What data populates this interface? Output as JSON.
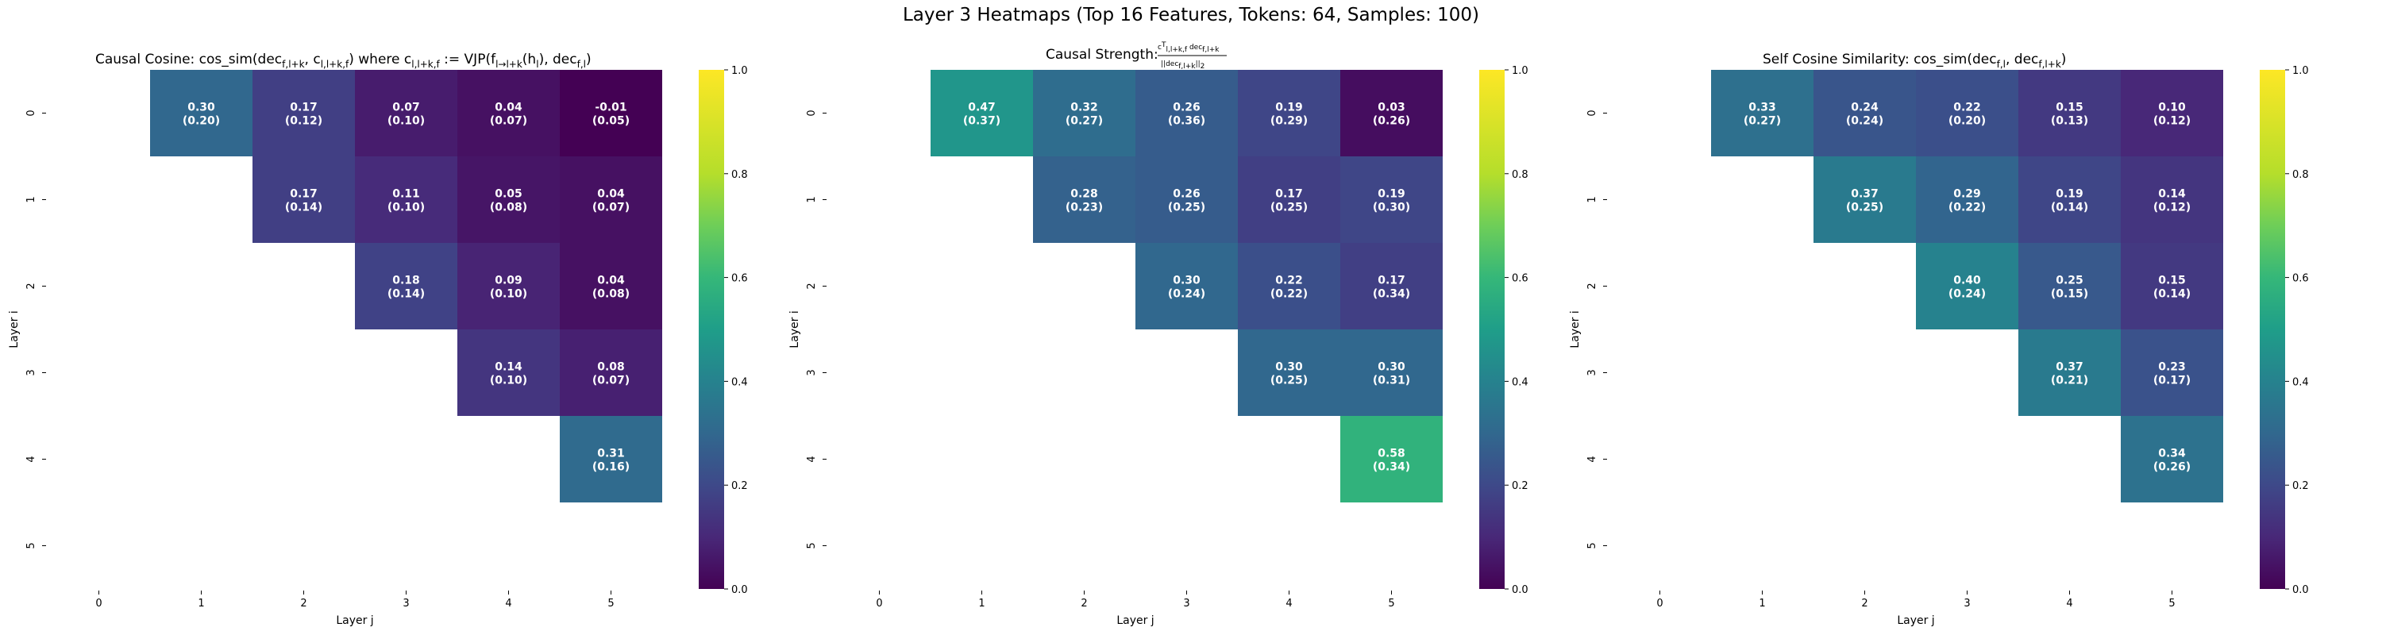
{
  "title": "Layer 3 Heatmaps (Top 16 Features, Tokens: 64, Samples: 100)",
  "chart_data": [
    {
      "type": "heatmap",
      "title": "Causal Cosine: cos_sim(dec_{f,l+k}, c_{l,l+k,f}) where c_{l,l+k,f} := VJP(f_{l→l+k}(h_l), dec_{f,l})",
      "xlabel": "Layer j",
      "ylabel": "Layer i",
      "x_ticks": [
        "0",
        "1",
        "2",
        "3",
        "4",
        "5"
      ],
      "y_ticks": [
        "0",
        "1",
        "2",
        "3",
        "4",
        "5"
      ],
      "colormap": "viridis",
      "vmin": 0.0,
      "vmax": 1.0,
      "colorbar_ticks": [
        "0.0",
        "0.2",
        "0.4",
        "0.6",
        "0.8",
        "1.0"
      ],
      "cells": [
        {
          "i": 0,
          "j": 1,
          "value": 0.3,
          "label": "0.30",
          "sublabel": "(0.20)"
        },
        {
          "i": 0,
          "j": 2,
          "value": 0.17,
          "label": "0.17",
          "sublabel": "(0.12)"
        },
        {
          "i": 0,
          "j": 3,
          "value": 0.07,
          "label": "0.07",
          "sublabel": "(0.10)"
        },
        {
          "i": 0,
          "j": 4,
          "value": 0.04,
          "label": "0.04",
          "sublabel": "(0.07)"
        },
        {
          "i": 0,
          "j": 5,
          "value": -0.01,
          "label": "-0.01",
          "sublabel": "(0.05)"
        },
        {
          "i": 1,
          "j": 2,
          "value": 0.17,
          "label": "0.17",
          "sublabel": "(0.14)"
        },
        {
          "i": 1,
          "j": 3,
          "value": 0.11,
          "label": "0.11",
          "sublabel": "(0.10)"
        },
        {
          "i": 1,
          "j": 4,
          "value": 0.05,
          "label": "0.05",
          "sublabel": "(0.08)"
        },
        {
          "i": 1,
          "j": 5,
          "value": 0.04,
          "label": "0.04",
          "sublabel": "(0.07)"
        },
        {
          "i": 2,
          "j": 3,
          "value": 0.18,
          "label": "0.18",
          "sublabel": "(0.14)"
        },
        {
          "i": 2,
          "j": 4,
          "value": 0.09,
          "label": "0.09",
          "sublabel": "(0.10)"
        },
        {
          "i": 2,
          "j": 5,
          "value": 0.04,
          "label": "0.04",
          "sublabel": "(0.08)"
        },
        {
          "i": 3,
          "j": 4,
          "value": 0.14,
          "label": "0.14",
          "sublabel": "(0.10)"
        },
        {
          "i": 3,
          "j": 5,
          "value": 0.08,
          "label": "0.08",
          "sublabel": "(0.07)"
        },
        {
          "i": 4,
          "j": 5,
          "value": 0.31,
          "label": "0.31",
          "sublabel": "(0.16)"
        }
      ]
    },
    {
      "type": "heatmap",
      "title": "Causal Strength: c^T_{l,l+k,f} dec_{f,l+k} / ||dec_{f,l+k}||_2",
      "xlabel": "Layer j",
      "ylabel": "Layer i",
      "x_ticks": [
        "0",
        "1",
        "2",
        "3",
        "4",
        "5"
      ],
      "y_ticks": [
        "0",
        "1",
        "2",
        "3",
        "4",
        "5"
      ],
      "colormap": "viridis",
      "vmin": 0.0,
      "vmax": 1.0,
      "colorbar_ticks": [
        "0.0",
        "0.2",
        "0.4",
        "0.6",
        "0.8",
        "1.0"
      ],
      "cells": [
        {
          "i": 0,
          "j": 1,
          "value": 0.47,
          "label": "0.47",
          "sublabel": "(0.37)"
        },
        {
          "i": 0,
          "j": 2,
          "value": 0.32,
          "label": "0.32",
          "sublabel": "(0.27)"
        },
        {
          "i": 0,
          "j": 3,
          "value": 0.26,
          "label": "0.26",
          "sublabel": "(0.36)"
        },
        {
          "i": 0,
          "j": 4,
          "value": 0.19,
          "label": "0.19",
          "sublabel": "(0.29)"
        },
        {
          "i": 0,
          "j": 5,
          "value": 0.03,
          "label": "0.03",
          "sublabel": "(0.26)"
        },
        {
          "i": 1,
          "j": 2,
          "value": 0.28,
          "label": "0.28",
          "sublabel": "(0.23)"
        },
        {
          "i": 1,
          "j": 3,
          "value": 0.26,
          "label": "0.26",
          "sublabel": "(0.25)"
        },
        {
          "i": 1,
          "j": 4,
          "value": 0.17,
          "label": "0.17",
          "sublabel": "(0.25)"
        },
        {
          "i": 1,
          "j": 5,
          "value": 0.19,
          "label": "0.19",
          "sublabel": "(0.30)"
        },
        {
          "i": 2,
          "j": 3,
          "value": 0.3,
          "label": "0.30",
          "sublabel": "(0.24)"
        },
        {
          "i": 2,
          "j": 4,
          "value": 0.22,
          "label": "0.22",
          "sublabel": "(0.22)"
        },
        {
          "i": 2,
          "j": 5,
          "value": 0.17,
          "label": "0.17",
          "sublabel": "(0.34)"
        },
        {
          "i": 3,
          "j": 4,
          "value": 0.3,
          "label": "0.30",
          "sublabel": "(0.25)"
        },
        {
          "i": 3,
          "j": 5,
          "value": 0.3,
          "label": "0.30",
          "sublabel": "(0.31)"
        },
        {
          "i": 4,
          "j": 5,
          "value": 0.58,
          "label": "0.58",
          "sublabel": "(0.34)"
        }
      ]
    },
    {
      "type": "heatmap",
      "title": "Self Cosine Similarity: cos_sim(dec_{f,l}, dec_{f,l+k})",
      "xlabel": "Layer j",
      "ylabel": "Layer i",
      "x_ticks": [
        "0",
        "1",
        "2",
        "3",
        "4",
        "5"
      ],
      "y_ticks": [
        "0",
        "1",
        "2",
        "3",
        "4",
        "5"
      ],
      "colormap": "viridis",
      "vmin": 0.0,
      "vmax": 1.0,
      "colorbar_ticks": [
        "0.0",
        "0.2",
        "0.4",
        "0.6",
        "0.8",
        "1.0"
      ],
      "cells": [
        {
          "i": 0,
          "j": 1,
          "value": 0.33,
          "label": "0.33",
          "sublabel": "(0.27)"
        },
        {
          "i": 0,
          "j": 2,
          "value": 0.24,
          "label": "0.24",
          "sublabel": "(0.24)"
        },
        {
          "i": 0,
          "j": 3,
          "value": 0.22,
          "label": "0.22",
          "sublabel": "(0.20)"
        },
        {
          "i": 0,
          "j": 4,
          "value": 0.15,
          "label": "0.15",
          "sublabel": "(0.13)"
        },
        {
          "i": 0,
          "j": 5,
          "value": 0.1,
          "label": "0.10",
          "sublabel": "(0.12)"
        },
        {
          "i": 1,
          "j": 2,
          "value": 0.37,
          "label": "0.37",
          "sublabel": "(0.25)"
        },
        {
          "i": 1,
          "j": 3,
          "value": 0.29,
          "label": "0.29",
          "sublabel": "(0.22)"
        },
        {
          "i": 1,
          "j": 4,
          "value": 0.19,
          "label": "0.19",
          "sublabel": "(0.14)"
        },
        {
          "i": 1,
          "j": 5,
          "value": 0.14,
          "label": "0.14",
          "sublabel": "(0.12)"
        },
        {
          "i": 2,
          "j": 3,
          "value": 0.4,
          "label": "0.40",
          "sublabel": "(0.24)"
        },
        {
          "i": 2,
          "j": 4,
          "value": 0.25,
          "label": "0.25",
          "sublabel": "(0.15)"
        },
        {
          "i": 2,
          "j": 5,
          "value": 0.15,
          "label": "0.15",
          "sublabel": "(0.14)"
        },
        {
          "i": 3,
          "j": 4,
          "value": 0.37,
          "label": "0.37",
          "sublabel": "(0.21)"
        },
        {
          "i": 3,
          "j": 5,
          "value": 0.23,
          "label": "0.23",
          "sublabel": "(0.17)"
        },
        {
          "i": 4,
          "j": 5,
          "value": 0.34,
          "label": "0.34",
          "sublabel": "(0.26)"
        }
      ]
    }
  ]
}
